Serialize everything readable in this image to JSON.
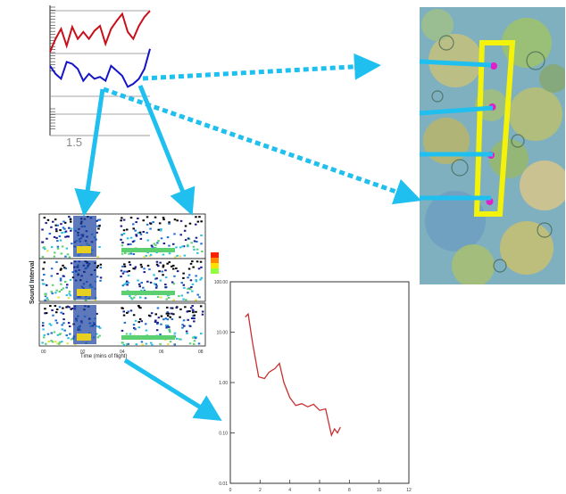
{
  "top_plot": {
    "x_tick_label": "1.5",
    "series_colors": {
      "upper": "#c8101a",
      "lower": "#1414c8"
    }
  },
  "spectrogram": {
    "ylabel": "Sound Interval",
    "xlabel": "Time (mins of flight)",
    "colorbar_colors": [
      "#ff2000",
      "#ff8a00",
      "#ffe000",
      "#90ff40"
    ],
    "x_tick_labels": [
      "00",
      "02",
      "04",
      "06",
      "08"
    ]
  },
  "decay_plot": {
    "y_tick_labels": [
      "100.00",
      "10.00",
      "1.00",
      "0.10",
      "0.01"
    ],
    "x_tick_labels": [
      "0",
      "2",
      "4",
      "6",
      "8",
      "10",
      "12"
    ],
    "line_color": "#c83030"
  },
  "map": {
    "region_color": "#f2f20a",
    "sample_point_color": "#e020c8",
    "sample_point_count": 4
  },
  "arrows": {
    "color": "#1fbfef"
  },
  "chart_data": [
    {
      "type": "line",
      "series": [
        {
          "values": [
            0.43,
            0.35,
            0.3,
            0.47,
            0.45,
            0.4,
            0.28,
            0.35,
            0.3,
            0.32,
            0.28,
            0.43,
            0.38,
            0.33,
            0.22,
            0.25,
            0.3,
            0.4,
            0.6
          ]
        },
        {
          "values": [
            0.57,
            0.7,
            0.8,
            0.63,
            0.82,
            0.7,
            0.77,
            0.7,
            0.78,
            0.83,
            0.65,
            0.8,
            0.88,
            0.95,
            0.77,
            0.7,
            0.83,
            0.92,
            0.98
          ]
        }
      ]
    },
    {
      "type": "line",
      "yscale": "log",
      "xlim": [
        0,
        12
      ],
      "ylim": [
        0.01,
        100
      ],
      "series": [
        {
          "x": [
            1.0,
            1.2,
            1.5,
            1.9,
            2.3,
            2.6,
            3.0,
            3.3,
            3.6,
            4.0,
            4.4,
            4.8,
            5.2,
            5.6,
            6.0,
            6.4,
            6.8,
            7.0,
            7.2,
            7.4
          ],
          "y": [
            20,
            23,
            6,
            1.3,
            1.2,
            1.6,
            1.9,
            2.4,
            1.0,
            0.5,
            0.35,
            0.38,
            0.33,
            0.37,
            0.28,
            0.3,
            0.09,
            0.12,
            0.1,
            0.13
          ]
        }
      ]
    }
  ]
}
